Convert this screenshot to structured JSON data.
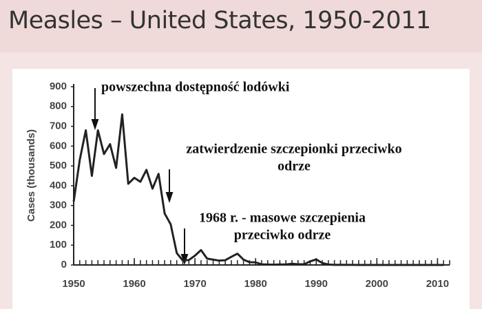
{
  "chart_data": {
    "type": "line",
    "title": "Measles – United States, 1950-2011",
    "y_label": "Cases (thousands)",
    "x": [
      1950,
      1951,
      1952,
      1953,
      1954,
      1955,
      1956,
      1957,
      1958,
      1959,
      1960,
      1961,
      1962,
      1963,
      1964,
      1965,
      1966,
      1967,
      1968,
      1969,
      1970,
      1971,
      1972,
      1973,
      1974,
      1975,
      1976,
      1977,
      1978,
      1979,
      1980,
      1981,
      1982,
      1983,
      1984,
      1985,
      1986,
      1987,
      1988,
      1989,
      1990,
      1991,
      1992,
      1993,
      1994,
      1995,
      1996,
      1997,
      1998,
      1999,
      2000,
      2001,
      2002,
      2003,
      2004,
      2005,
      2006,
      2007,
      2008,
      2009,
      2010,
      2011
    ],
    "series": [
      {
        "name": "Cases",
        "color": "#222222",
        "values": [
          320,
          530,
          680,
          450,
          680,
          560,
          610,
          490,
          760,
          410,
          440,
          420,
          480,
          385,
          460,
          260,
          205,
          60,
          22,
          25,
          47,
          75,
          32,
          27,
          22,
          24,
          41,
          57,
          27,
          14,
          13,
          3,
          2,
          1.5,
          2.6,
          2.8,
          6,
          3.6,
          3.4,
          18,
          28,
          9.6,
          2.2,
          0.3,
          1,
          0.3,
          0.5,
          0.1,
          0.1,
          0.1,
          0.1,
          0.1,
          0,
          0,
          0,
          0.1,
          0,
          0,
          0.1,
          0.1,
          0.1,
          0.2
        ]
      }
    ],
    "xlim": [
      1950,
      2012
    ],
    "ylim": [
      0,
      900
    ],
    "xticks": [
      1950,
      1960,
      1970,
      1980,
      1990,
      2000,
      2010
    ],
    "yticks": [
      0,
      100,
      200,
      300,
      400,
      500,
      600,
      700,
      800,
      900
    ],
    "annotations": [
      {
        "lines": [
          "powszechna dostępność lodówki"
        ]
      },
      {
        "lines": [
          "zatwierdzenie szczepionki przeciwko",
          "odrze"
        ]
      },
      {
        "lines": [
          "1968 r. - masowe szczepienia",
          "przeciwko odrze"
        ]
      }
    ]
  }
}
